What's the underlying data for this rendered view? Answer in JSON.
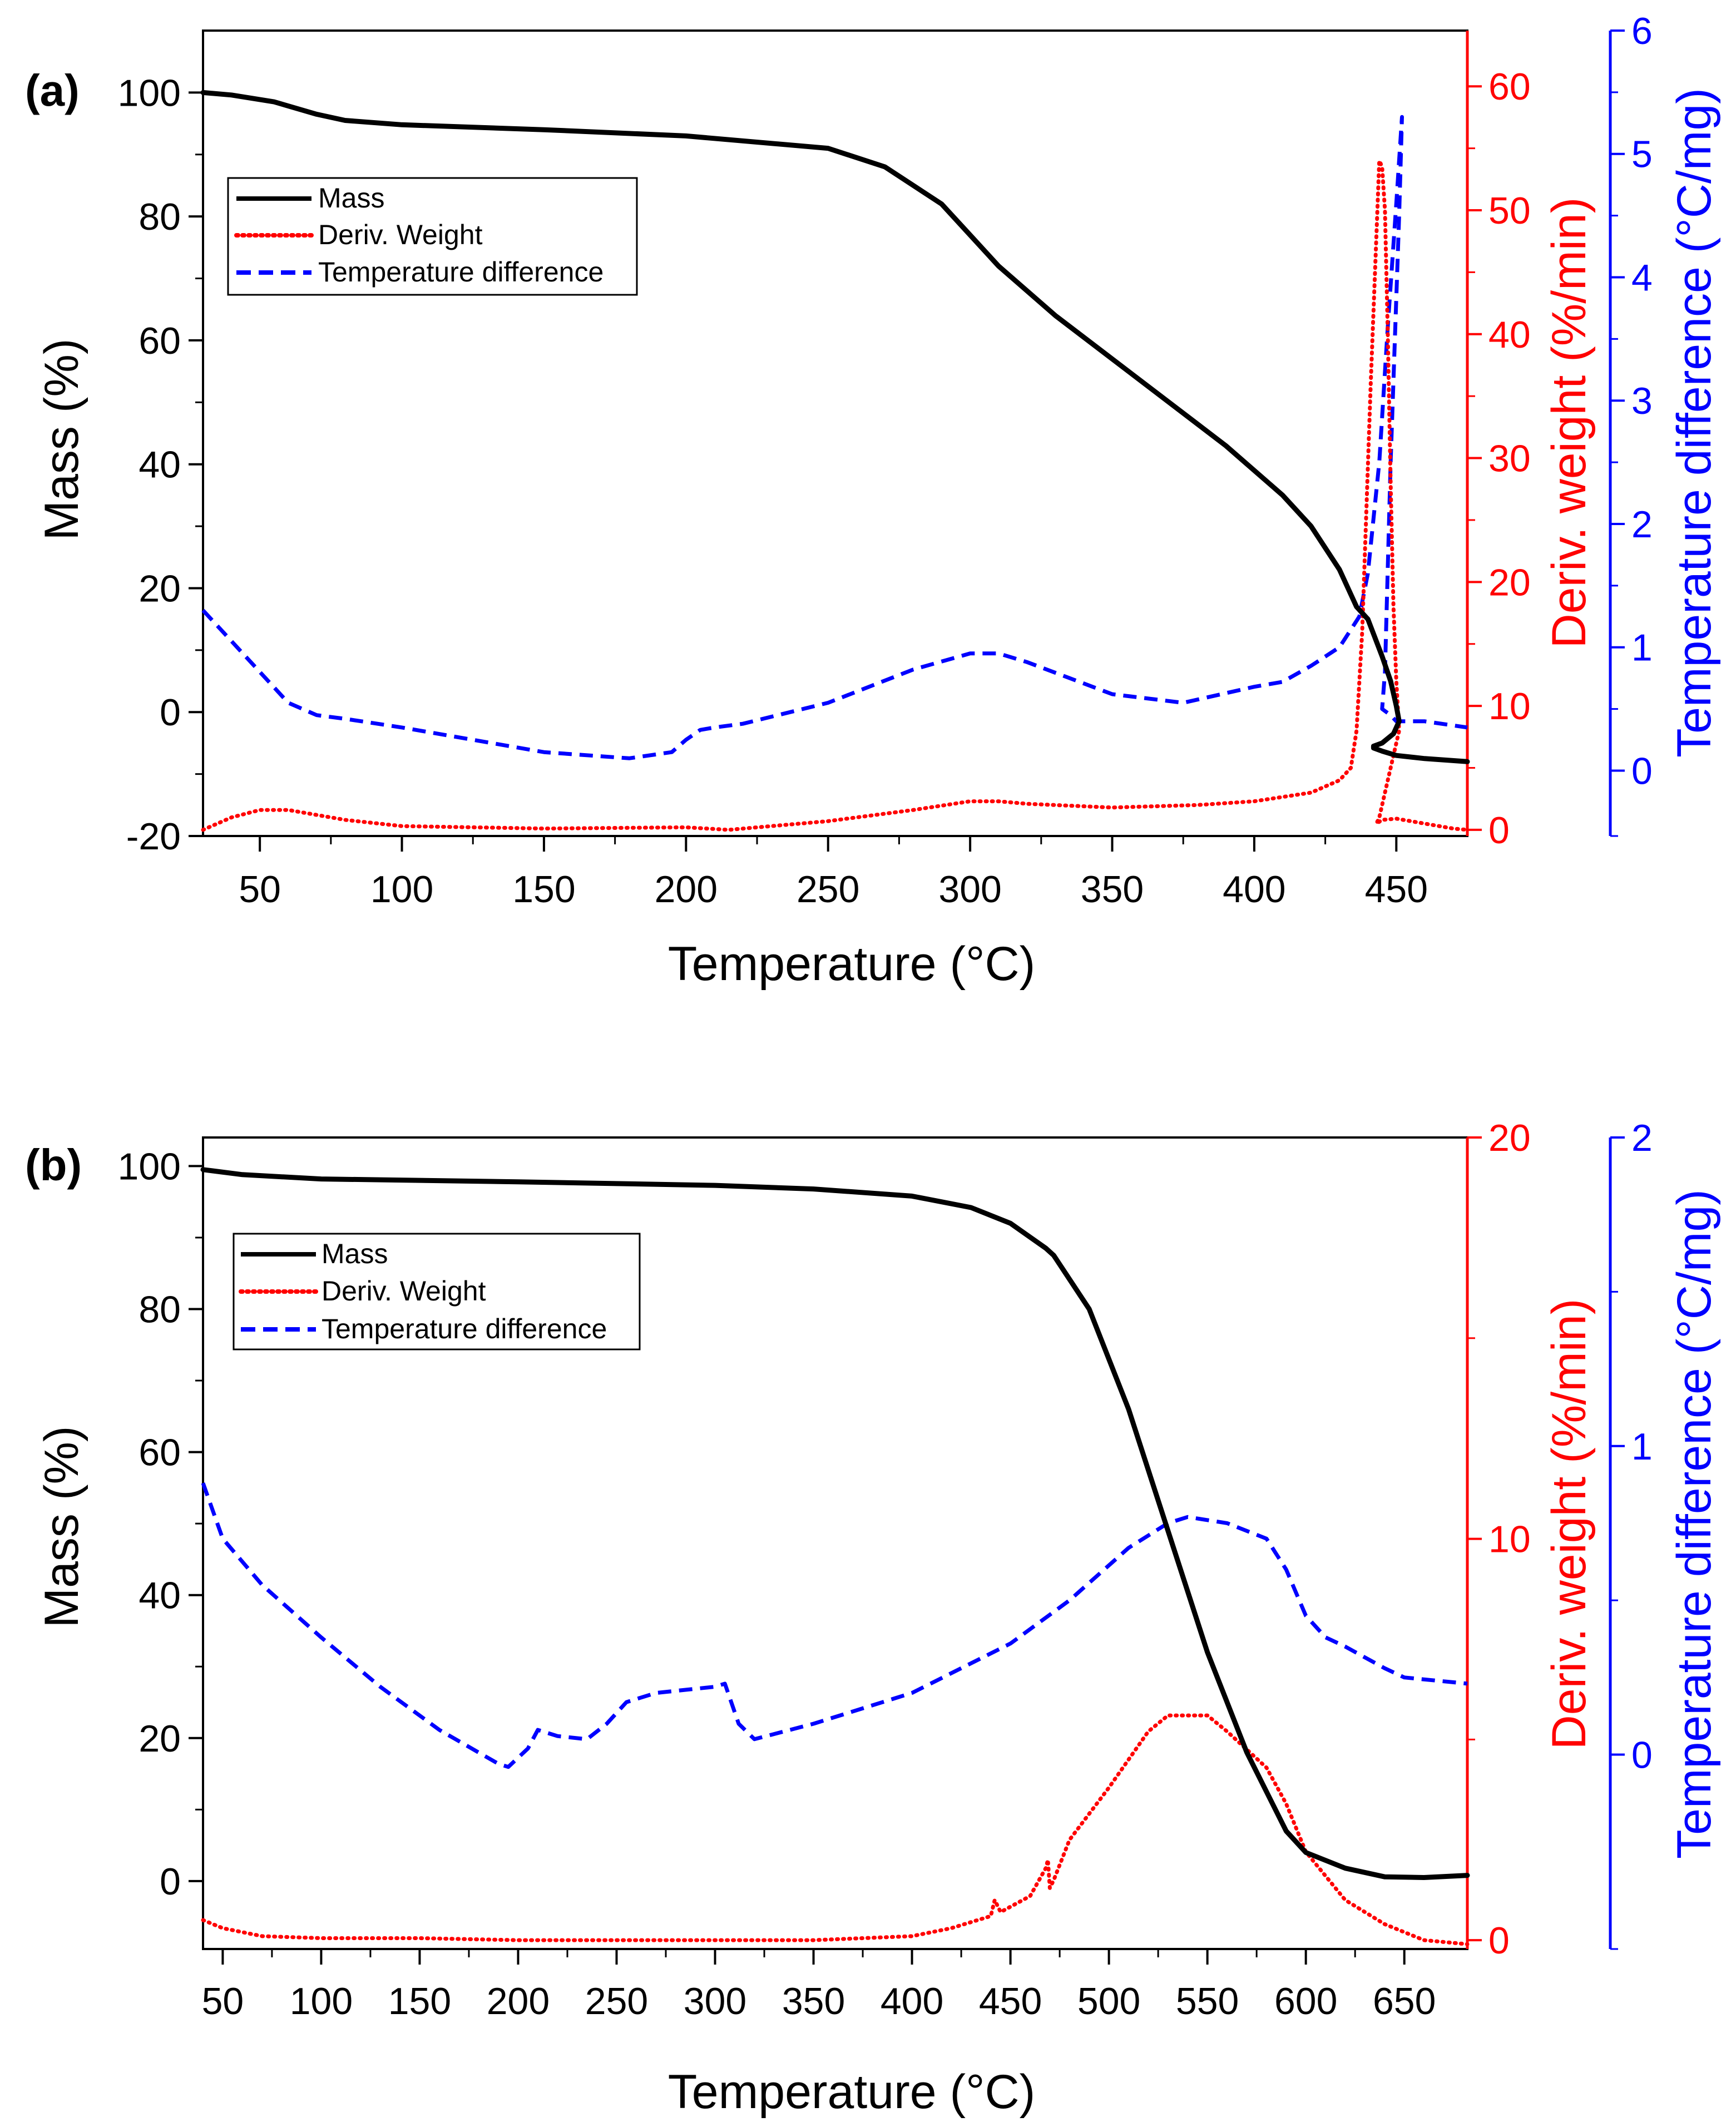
{
  "chart_data": [
    {
      "type": "line",
      "panel_label": "(a)",
      "xlabel": "Temperature (°C)",
      "ylabel": "Mass (%)",
      "y2label": "Deriv. weight (%/min)",
      "y3label": "Temperature difference (°C/mg)",
      "xlim": [
        30,
        475
      ],
      "ylim": [
        -20,
        110
      ],
      "y2lim": [
        -0.5,
        64.5
      ],
      "y3lim": [
        -0.53,
        6.0
      ],
      "xticks": [
        50,
        100,
        150,
        200,
        250,
        300,
        350,
        400,
        450
      ],
      "yticks": [
        -20,
        0,
        20,
        40,
        60,
        80,
        100
      ],
      "y2ticks": [
        0,
        10,
        20,
        30,
        40,
        50,
        60
      ],
      "y3ticks": [
        0,
        1,
        2,
        3,
        4,
        5,
        6
      ],
      "legend_position": "upper-left",
      "colors": {
        "axis": "#000000",
        "deriv": "#ff0000",
        "tdiff": "#0000ff",
        "mass": "#000000"
      },
      "series": [
        {
          "name": "Mass",
          "axis": "left",
          "style": "solid",
          "color": "#000000",
          "x": [
            30,
            40,
            55,
            70,
            80,
            100,
            150,
            200,
            250,
            270,
            290,
            300,
            310,
            330,
            350,
            370,
            390,
            410,
            420,
            430,
            436,
            440,
            445,
            448,
            450,
            451,
            449,
            445,
            442,
            442,
            445,
            450,
            460,
            475
          ],
          "y": [
            100,
            99.6,
            98.5,
            96.5,
            95.5,
            94.8,
            94,
            93,
            91,
            88,
            82,
            77,
            72,
            64,
            57,
            50,
            43,
            35,
            30,
            23,
            17,
            15,
            9,
            5,
            1,
            -1.5,
            -3.5,
            -5,
            -5.5,
            -5.8,
            -6.3,
            -7,
            -7.5,
            -8
          ]
        },
        {
          "name": "Deriv. Weight",
          "axis": "right1",
          "style": "dotted",
          "color": "#ff0000",
          "x": [
            30,
            40,
            50,
            60,
            70,
            80,
            100,
            150,
            200,
            215,
            250,
            280,
            300,
            310,
            320,
            350,
            380,
            400,
            420,
            430,
            434,
            436,
            438,
            441,
            444,
            445,
            446,
            447,
            448,
            449,
            450,
            451,
            446,
            444,
            443,
            445,
            450,
            460,
            470,
            475
          ],
          "y": [
            0,
            1,
            1.6,
            1.6,
            1.2,
            0.8,
            0.3,
            0.1,
            0.2,
            0,
            0.7,
            1.6,
            2.3,
            2.3,
            2.1,
            1.8,
            2,
            2.3,
            3,
            4,
            5,
            8,
            16,
            36,
            54,
            53.5,
            50,
            40,
            28,
            18,
            12,
            8,
            3,
            1,
            0.5,
            0.8,
            0.9,
            0.5,
            0.1,
            0
          ]
        },
        {
          "name": "Temperature difference",
          "axis": "right2",
          "style": "dashed",
          "color": "#0000ff",
          "x": [
            30,
            40,
            50,
            60,
            70,
            80,
            100,
            150,
            180,
            195,
            200,
            205,
            210,
            220,
            250,
            280,
            300,
            310,
            320,
            350,
            375,
            400,
            410,
            420,
            430,
            437,
            440,
            444,
            447,
            450,
            452,
            451,
            448,
            446,
            445,
            448,
            450,
            460,
            475
          ],
          "y": [
            1.3,
            1.05,
            0.8,
            0.55,
            0.45,
            0.42,
            0.35,
            0.15,
            0.1,
            0.15,
            0.25,
            0.33,
            0.35,
            0.38,
            0.55,
            0.82,
            0.95,
            0.95,
            0.88,
            0.62,
            0.55,
            0.68,
            0.72,
            0.85,
            1.0,
            1.25,
            1.6,
            2.5,
            3.6,
            4.6,
            5.3,
            4.5,
            2.5,
            0.8,
            0.5,
            0.45,
            0.4,
            0.4,
            0.35
          ]
        }
      ]
    },
    {
      "type": "line",
      "panel_label": "(b)",
      "xlabel": "Temperature (°C)",
      "ylabel": "Mass (%)",
      "y2label": "Deriv. weight (%/min)",
      "y3label": "Temperature difference (°C/mg)",
      "xlim": [
        40,
        682
      ],
      "ylim": [
        -9.5,
        104
      ],
      "y2lim": [
        -0.22,
        20
      ],
      "y3lim": [
        -0.63,
        2.0
      ],
      "xticks": [
        50,
        100,
        150,
        200,
        250,
        300,
        350,
        400,
        450,
        500,
        550,
        600,
        650
      ],
      "yticks": [
        0,
        20,
        40,
        60,
        80,
        100
      ],
      "y2ticks": [
        0,
        10,
        20
      ],
      "y3ticks": [
        0,
        1,
        2
      ],
      "legend_position": "upper-left",
      "colors": {
        "axis": "#000000",
        "deriv": "#ff0000",
        "tdiff": "#0000ff",
        "mass": "#000000"
      },
      "series": [
        {
          "name": "Mass",
          "axis": "left",
          "style": "solid",
          "color": "#000000",
          "x": [
            40,
            60,
            100,
            200,
            300,
            350,
            400,
            430,
            450,
            468,
            472,
            490,
            510,
            530,
            550,
            570,
            590,
            600,
            620,
            640,
            660,
            682
          ],
          "y": [
            99.5,
            98.8,
            98.2,
            97.8,
            97.3,
            96.8,
            95.8,
            94.2,
            92,
            88.5,
            87.5,
            80,
            66,
            49,
            32,
            18,
            7,
            4,
            1.8,
            0.6,
            0.5,
            0.8
          ]
        },
        {
          "name": "Deriv. Weight",
          "axis": "right1",
          "style": "dotted",
          "color": "#ff0000",
          "x": [
            40,
            50,
            70,
            100,
            150,
            200,
            250,
            300,
            350,
            400,
            420,
            440,
            442,
            445,
            460,
            468,
            469,
            470,
            472,
            480,
            500,
            520,
            530,
            550,
            560,
            580,
            590,
            600,
            620,
            640,
            660,
            682
          ],
          "y": [
            0.5,
            0.3,
            0.1,
            0.05,
            0.05,
            0,
            0,
            0,
            0,
            0.1,
            0.3,
            0.6,
            1,
            0.7,
            1.1,
            1.8,
            2,
            1.3,
            1.5,
            2.5,
            3.8,
            5.2,
            5.6,
            5.6,
            5.2,
            4.3,
            3.4,
            2.2,
            1,
            0.4,
            0,
            -0.1
          ]
        },
        {
          "name": "Temperature difference",
          "axis": "right2",
          "style": "dashed",
          "color": "#0000ff",
          "x": [
            40,
            50,
            70,
            100,
            130,
            160,
            190,
            195,
            205,
            210,
            220,
            235,
            245,
            255,
            270,
            300,
            305,
            312,
            320,
            350,
            400,
            450,
            480,
            510,
            530,
            540,
            560,
            580,
            590,
            600,
            610,
            620,
            640,
            650,
            682
          ],
          "y": [
            0.88,
            0.7,
            0.55,
            0.38,
            0.22,
            0.08,
            -0.03,
            -0.04,
            0.02,
            0.08,
            0.06,
            0.05,
            0.1,
            0.17,
            0.2,
            0.22,
            0.23,
            0.1,
            0.05,
            0.1,
            0.2,
            0.36,
            0.5,
            0.67,
            0.75,
            0.77,
            0.75,
            0.7,
            0.6,
            0.45,
            0.38,
            0.35,
            0.28,
            0.25,
            0.23
          ]
        }
      ]
    }
  ]
}
